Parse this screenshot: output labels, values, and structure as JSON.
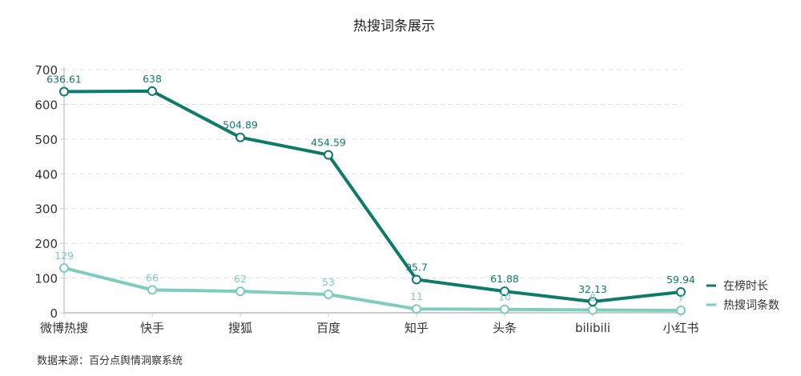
{
  "chart_data": {
    "type": "line",
    "title": "热搜词条展示",
    "xlabel": "",
    "ylabel": "",
    "categories": [
      "微博热搜",
      "快手",
      "搜狐",
      "百度",
      "知乎",
      "头条",
      "bilibili",
      "小红书"
    ],
    "series": [
      {
        "name": "在榜时长",
        "color": "#0e7a6a",
        "values": [
          636.61,
          638,
          504.89,
          454.59,
          95.7,
          61.88,
          32.13,
          59.94
        ]
      },
      {
        "name": "热搜词条数",
        "color": "#7ecbc0",
        "values": [
          129,
          66,
          62,
          53,
          11,
          10,
          8,
          7
        ]
      }
    ],
    "ylim": [
      0,
      700
    ],
    "yticks": [
      0,
      100,
      200,
      300,
      400,
      500,
      600,
      700
    ],
    "grid": true,
    "legend_position": "right-bottom",
    "source": "数据来源：百分点舆情洞察系统"
  }
}
